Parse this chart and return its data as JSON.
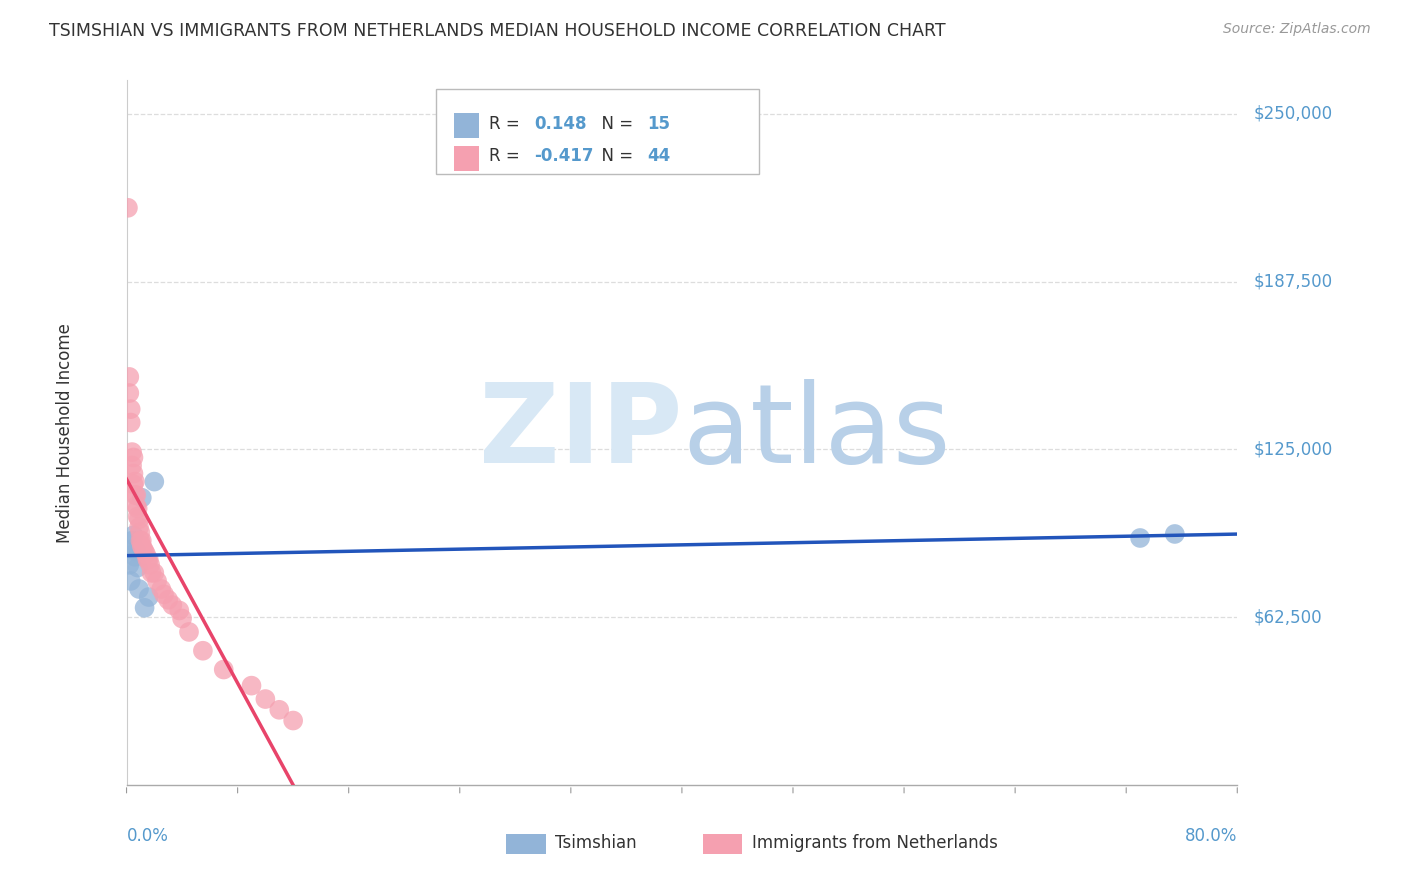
{
  "title": "TSIMSHIAN VS IMMIGRANTS FROM NETHERLANDS MEDIAN HOUSEHOLD INCOME CORRELATION CHART",
  "source": "Source: ZipAtlas.com",
  "ylabel": "Median Household Income",
  "xlim": [
    0.0,
    0.8
  ],
  "ylim": [
    0,
    262500
  ],
  "blue_R": 0.148,
  "blue_N": 15,
  "pink_R": -0.417,
  "pink_N": 44,
  "blue_color": "#92B4D8",
  "pink_color": "#F5A0B0",
  "line_blue": "#2255BB",
  "line_pink": "#E8446A",
  "y_label_color": "#5599CC",
  "x_label_color": "#5599CC",
  "grid_color": "#DDDDDD",
  "title_color": "#333333",
  "text_color": "#333333",
  "source_color": "#999999",
  "blue_scatter_x": [
    0.002,
    0.003,
    0.004,
    0.005,
    0.005,
    0.006,
    0.007,
    0.008,
    0.009,
    0.011,
    0.013,
    0.016,
    0.02,
    0.73,
    0.755
  ],
  "blue_scatter_y": [
    82000,
    76000,
    91000,
    93000,
    88000,
    85000,
    87000,
    81000,
    73000,
    107000,
    66000,
    70000,
    113000,
    92000,
    93500
  ],
  "pink_scatter_x": [
    0.001,
    0.002,
    0.002,
    0.003,
    0.003,
    0.004,
    0.004,
    0.005,
    0.005,
    0.005,
    0.006,
    0.006,
    0.007,
    0.007,
    0.008,
    0.008,
    0.009,
    0.009,
    0.01,
    0.01,
    0.011,
    0.011,
    0.012,
    0.013,
    0.014,
    0.015,
    0.016,
    0.017,
    0.018,
    0.02,
    0.022,
    0.025,
    0.027,
    0.03,
    0.033,
    0.038,
    0.04,
    0.045,
    0.055,
    0.07,
    0.09,
    0.1,
    0.11,
    0.12
  ],
  "pink_scatter_y": [
    215000,
    152000,
    146000,
    140000,
    135000,
    124000,
    119000,
    122000,
    116000,
    112000,
    113000,
    108000,
    108000,
    104000,
    103000,
    100000,
    99000,
    96000,
    94000,
    91000,
    91000,
    89000,
    88000,
    87000,
    86000,
    84000,
    84000,
    82000,
    79000,
    79000,
    76000,
    73000,
    71000,
    69000,
    67000,
    65000,
    62000,
    57000,
    50000,
    43000,
    37000,
    32000,
    28000,
    24000
  ]
}
